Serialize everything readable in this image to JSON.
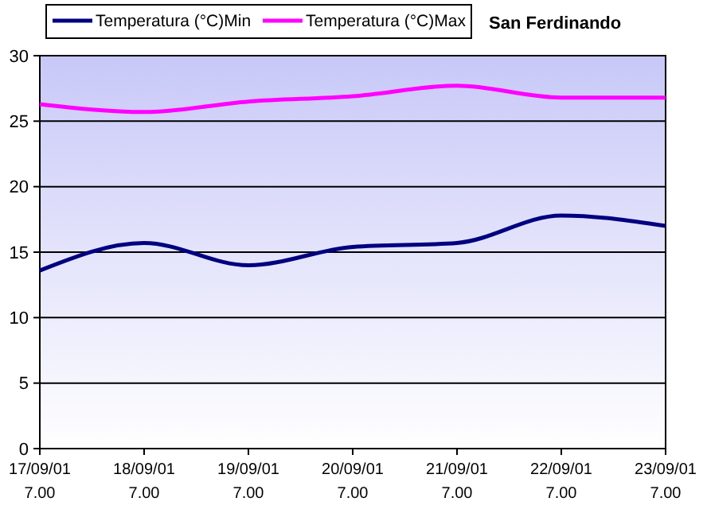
{
  "chart_data": {
    "type": "line",
    "title": "San Ferdinando",
    "categories": [
      "17/09/01 7.00",
      "18/09/01 7.00",
      "19/09/01 7.00",
      "20/09/01 7.00",
      "21/09/01 7.00",
      "22/09/01 7.00",
      "23/09/01 7.00"
    ],
    "series": [
      {
        "name": "Temperatura (°C)Min",
        "color": "#000080",
        "values": [
          13.6,
          15.7,
          14.0,
          15.4,
          15.7,
          17.8,
          17.0
        ]
      },
      {
        "name": "Temperatura (°C)Max",
        "color": "#ff00ff",
        "values": [
          26.3,
          25.7,
          26.5,
          26.9,
          27.7,
          26.8,
          26.8
        ]
      }
    ],
    "ylim": [
      0,
      30
    ],
    "yticks": [
      0,
      5,
      10,
      15,
      20,
      25,
      30
    ],
    "grid": "y",
    "legend": "top",
    "marker": "none",
    "line_style": "solid"
  }
}
